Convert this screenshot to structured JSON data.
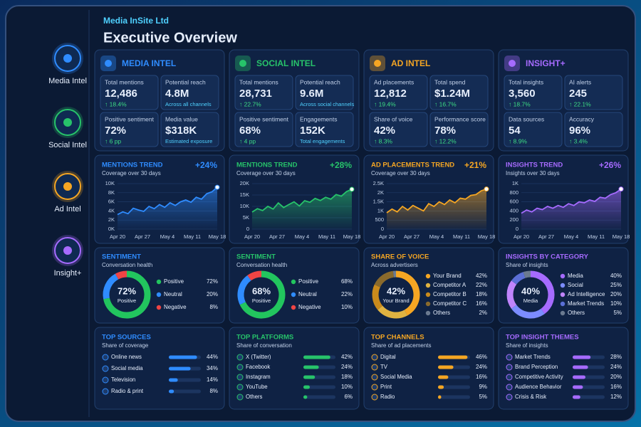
{
  "company": "Media InSite Ltd",
  "title": "Executive Overview",
  "nav": [
    "Media Intel",
    "Social Intel",
    "Ad Intel",
    "Insight+"
  ],
  "sections": [
    {
      "name": "MEDIA INTEL",
      "color": "#2f8cff",
      "kpis": [
        {
          "label": "Total mentions",
          "value": "12,486",
          "delta": "↑ 18.4%"
        },
        {
          "label": "Potential reach",
          "value": "4.8M",
          "note": "Across all channels"
        },
        {
          "label": "Positive sentiment",
          "value": "72%",
          "delta": "↑ 6 pp"
        },
        {
          "label": "Media value",
          "value": "$318K",
          "note": "Estimated exposure"
        }
      ],
      "trend": {
        "title": "MENTIONS TREND",
        "subtitle": "Coverage over 30 days",
        "change": "+24%",
        "values": [
          3200,
          3800,
          3400,
          4600,
          4200,
          3900,
          5000,
          4500,
          5400,
          4800,
          5800,
          5200,
          6000,
          6400,
          5900,
          7000,
          6600,
          7800,
          8200,
          9200
        ],
        "ylim": [
          0,
          10000
        ],
        "yticks": [
          {
            "value": 0,
            "label": "0K"
          },
          {
            "value": 2000,
            "label": "2K"
          },
          {
            "value": 4000,
            "label": "4K"
          },
          {
            "value": 6000,
            "label": "6K"
          },
          {
            "value": 8000,
            "label": "8K"
          },
          {
            "value": 10000,
            "label": "10K"
          }
        ],
        "xlabels": [
          "Apr 20",
          "Apr 27",
          "May 4",
          "May 11",
          "May 18"
        ]
      },
      "donut": {
        "title": "SENTIMENT",
        "subtitle": "Conversation health",
        "center": "72%",
        "center_label": "Positive",
        "segments": [
          {
            "name": "Positive",
            "value": 72,
            "label": "72%",
            "color": "#22c55e"
          },
          {
            "name": "Neutral",
            "value": 20,
            "label": "20%",
            "color": "#2f8cff"
          },
          {
            "name": "Negative",
            "value": 8,
            "label": "8%",
            "color": "#ef4444"
          }
        ]
      },
      "list": {
        "title": "TOP SOURCES",
        "subtitle": "Share of coverage",
        "items": [
          {
            "name": "Online news",
            "value": 44,
            "label": "44%"
          },
          {
            "name": "Social media",
            "value": 34,
            "label": "34%"
          },
          {
            "name": "Television",
            "value": 14,
            "label": "14%"
          },
          {
            "name": "Radio & print",
            "value": 8,
            "label": "8%"
          }
        ]
      }
    },
    {
      "name": "SOCIAL INTEL",
      "color": "#27c36a",
      "kpis": [
        {
          "label": "Total mentions",
          "value": "28,731",
          "delta": "↑ 22.7%"
        },
        {
          "label": "Potential reach",
          "value": "9.6M",
          "note": "Across social channels"
        },
        {
          "label": "Positive sentiment",
          "value": "68%",
          "delta": "↑ 4 pp"
        },
        {
          "label": "Engagements",
          "value": "152K",
          "note": "Total engagements"
        }
      ],
      "trend": {
        "title": "MENTIONS TREND",
        "subtitle": "Coverage over 30 days",
        "change": "+28%",
        "values": [
          7500,
          9000,
          8200,
          10000,
          8800,
          11500,
          9500,
          10800,
          12000,
          10200,
          12500,
          11800,
          13500,
          12600,
          14000,
          13200,
          15200,
          14500,
          16500,
          17500
        ],
        "ylim": [
          0,
          20000
        ],
        "yticks": [
          0,
          {
            "value": 5000,
            "label": "5K"
          },
          {
            "value": 10000,
            "label": "10K"
          },
          {
            "value": 15000,
            "label": "15K"
          },
          {
            "value": 20000,
            "label": "20K"
          }
        ],
        "xlabels": [
          "Apr 20",
          "Apr 27",
          "May 4",
          "May 11",
          "May 18"
        ]
      },
      "donut": {
        "title": "SENTIMENT",
        "subtitle": "Conversation health",
        "center": "68%",
        "center_label": "Positive",
        "segments": [
          {
            "name": "Positive",
            "value": 68,
            "label": "68%",
            "color": "#22c55e"
          },
          {
            "name": "Neutral",
            "value": 22,
            "label": "22%",
            "color": "#2f8cff"
          },
          {
            "name": "Negative",
            "value": 10,
            "label": "10%",
            "color": "#ef4444"
          }
        ]
      },
      "list": {
        "title": "TOP PLATFORMS",
        "subtitle": "Share of conversation",
        "items": [
          {
            "name": "X (Twitter)",
            "value": 42,
            "label": "42%"
          },
          {
            "name": "Facebook",
            "value": 24,
            "label": "24%"
          },
          {
            "name": "Instagram",
            "value": 18,
            "label": "18%"
          },
          {
            "name": "YouTube",
            "value": 10,
            "label": "10%"
          },
          {
            "name": "Others",
            "value": 6,
            "label": "6%"
          }
        ]
      }
    },
    {
      "name": "AD INTEL",
      "color": "#f5a623",
      "kpis": [
        {
          "label": "Ad placements",
          "value": "12,812",
          "delta": "↑ 19.4%"
        },
        {
          "label": "Total spend",
          "value": "$1.24M",
          "delta": "↑ 16.7%"
        },
        {
          "label": "Share of voice",
          "value": "42%",
          "delta": "↑ 8.3%"
        },
        {
          "label": "Performance score",
          "value": "78%",
          "delta": "↑ 12.2%"
        }
      ],
      "trend": {
        "title": "AD PLACEMENTS TREND",
        "subtitle": "Coverage over 30 days",
        "change": "+21%",
        "values": [
          900,
          1100,
          950,
          1250,
          1050,
          1300,
          1150,
          1000,
          1400,
          1250,
          1500,
          1350,
          1600,
          1450,
          1700,
          1650,
          1850,
          1900,
          2100,
          2200
        ],
        "ylim": [
          0,
          2500
        ],
        "yticks": [
          0,
          500,
          {
            "value": 1000,
            "label": "1K"
          },
          {
            "value": 1500,
            "label": "1.5K"
          },
          {
            "value": 2000,
            "label": "2K"
          },
          {
            "value": 2500,
            "label": "2.5K"
          }
        ],
        "xlabels": [
          "Apr 20",
          "Apr 27",
          "May 4",
          "May 11",
          "May 18"
        ]
      },
      "donut": {
        "title": "SHARE OF VOICE",
        "subtitle": "Across advertisers",
        "center": "42%",
        "center_label": "Your Brand",
        "segments": [
          {
            "name": "Your Brand",
            "value": 42,
            "label": "42%",
            "color": "#f5a623"
          },
          {
            "name": "Competitor A",
            "value": 22,
            "label": "22%",
            "color": "#e0b341"
          },
          {
            "name": "Competitor B",
            "value": 18,
            "label": "18%",
            "color": "#c98a1c"
          },
          {
            "name": "Competitor C",
            "value": 16,
            "label": "16%",
            "color": "#8a6a2c"
          },
          {
            "name": "Others",
            "value": 2,
            "label": "2%",
            "color": "#6b7a90"
          }
        ]
      },
      "list": {
        "title": "TOP CHANNELS",
        "subtitle": "Share of ad placements",
        "items": [
          {
            "name": "Digital",
            "value": 46,
            "label": "46%"
          },
          {
            "name": "TV",
            "value": 24,
            "label": "24%"
          },
          {
            "name": "Social Media",
            "value": 16,
            "label": "16%"
          },
          {
            "name": "Print",
            "value": 9,
            "label": "9%"
          },
          {
            "name": "Radio",
            "value": 5,
            "label": "5%"
          }
        ]
      }
    },
    {
      "name": "INSIGHT+",
      "color": "#a66bff",
      "kpis": [
        {
          "label": "Total insights",
          "value": "3,560",
          "delta": "↑ 18.7%"
        },
        {
          "label": "AI alerts",
          "value": "245",
          "delta": "↑ 22.1%"
        },
        {
          "label": "Data sources",
          "value": "54",
          "delta": "↑ 8.9%"
        },
        {
          "label": "Accuracy",
          "value": "96%",
          "delta": "↑ 3.4%"
        }
      ],
      "trend": {
        "title": "INSIGHTS TREND",
        "subtitle": "Insights over 30 days",
        "change": "+26%",
        "values": [
          350,
          420,
          380,
          460,
          430,
          500,
          460,
          520,
          480,
          560,
          520,
          600,
          580,
          640,
          610,
          700,
          680,
          760,
          800,
          880
        ],
        "ylim": [
          0,
          1000
        ],
        "yticks": [
          0,
          200,
          400,
          600,
          800,
          {
            "value": 1000,
            "label": "1K"
          }
        ],
        "xlabels": [
          "Apr 20",
          "Apr 27",
          "May 4",
          "May 11",
          "May 18"
        ]
      },
      "donut": {
        "title": "INSIGHTS BY CATEGORY",
        "subtitle": "Share of insights",
        "center": "40%",
        "center_label": "Media",
        "segments": [
          {
            "name": "Media",
            "value": 40,
            "label": "40%",
            "color": "#a66bff"
          },
          {
            "name": "Social",
            "value": 25,
            "label": "25%",
            "color": "#7c8cff"
          },
          {
            "name": "Ad Intelligence",
            "value": 20,
            "label": "20%",
            "color": "#c084fc"
          },
          {
            "name": "Market Trends",
            "value": 10,
            "label": "10%",
            "color": "#5b6fd6"
          },
          {
            "name": "Others",
            "value": 5,
            "label": "5%",
            "color": "#6b7a90"
          }
        ]
      },
      "list": {
        "title": "TOP INSIGHT THEMES",
        "subtitle": "Share of insights",
        "items": [
          {
            "name": "Market Trends",
            "value": 28,
            "label": "28%"
          },
          {
            "name": "Brand Perception",
            "value": 24,
            "label": "24%"
          },
          {
            "name": "Competitive Activity",
            "value": 20,
            "label": "20%"
          },
          {
            "name": "Audience Behavior",
            "value": 16,
            "label": "16%"
          },
          {
            "name": "Crisis & Risk",
            "value": 12,
            "label": "12%"
          }
        ]
      }
    }
  ]
}
